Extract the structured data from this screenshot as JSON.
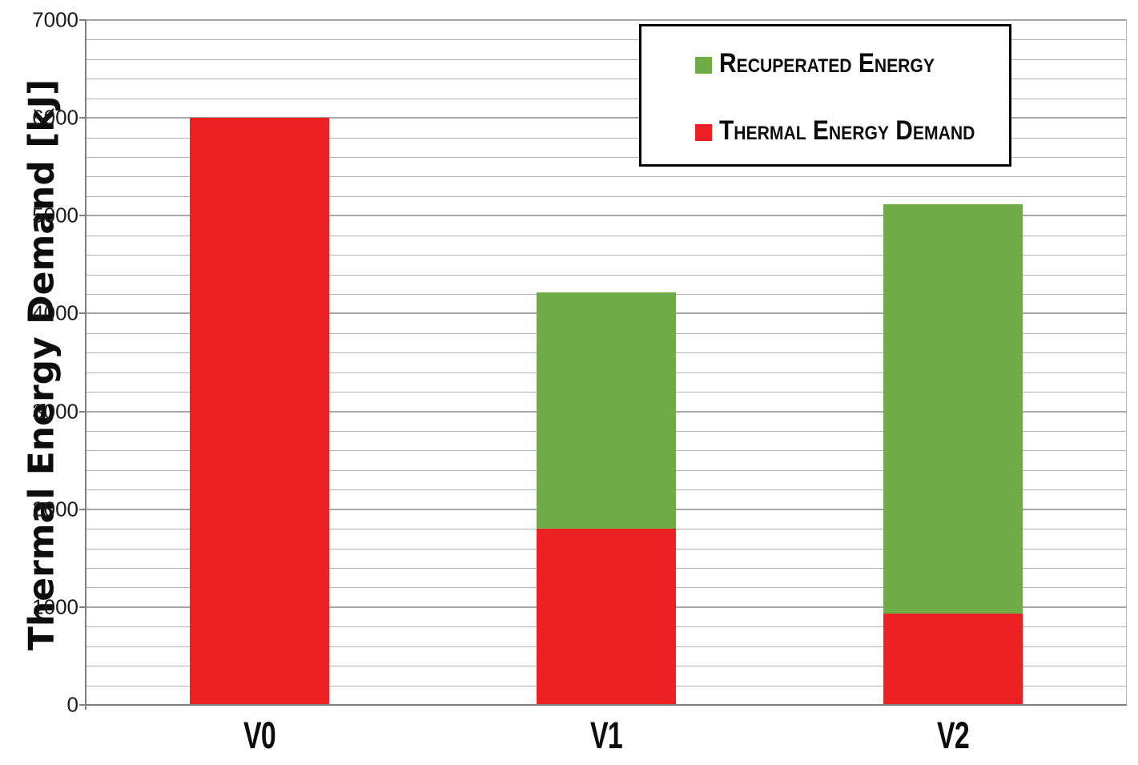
{
  "chart_data": {
    "type": "bar",
    "subtype": "stacked-column",
    "title": "",
    "xlabel": "",
    "ylabel": "Thermal Energy Demand [kJ]",
    "categories": [
      "V0",
      "V1",
      "V2"
    ],
    "series": [
      {
        "name": "Recuperated Energy",
        "color": "#6fac47",
        "values": [
          0,
          2420,
          4190
        ]
      },
      {
        "name": "Thermal Energy Demand",
        "color": "#ed2024",
        "values": [
          6000,
          1800,
          930
        ]
      }
    ],
    "stack_totals": [
      6000,
      4220,
      5120
    ],
    "ylim": [
      0,
      7000
    ],
    "yticks": [
      0,
      1000,
      2000,
      3000,
      4000,
      5000,
      6000,
      7000
    ],
    "grid": {
      "minor_step": 200,
      "major_step": 1000,
      "visible": true
    },
    "legend_position": "top-right-box"
  },
  "legend": {
    "items": [
      {
        "label": "Recuperated Energy",
        "color": "#6fac47"
      },
      {
        "label": "Thermal Energy Demand",
        "color": "#ed2024"
      }
    ]
  },
  "colors": {
    "recuperated_green": "#6fac47",
    "thermal_red": "#ed2024",
    "gridline_minor": "#b3b3b3",
    "gridline_major": "#a6a6a6",
    "axis": "#7f7f7f",
    "text": "#0d0d0d",
    "background": "#ffffff",
    "legend_border": "#000000"
  }
}
